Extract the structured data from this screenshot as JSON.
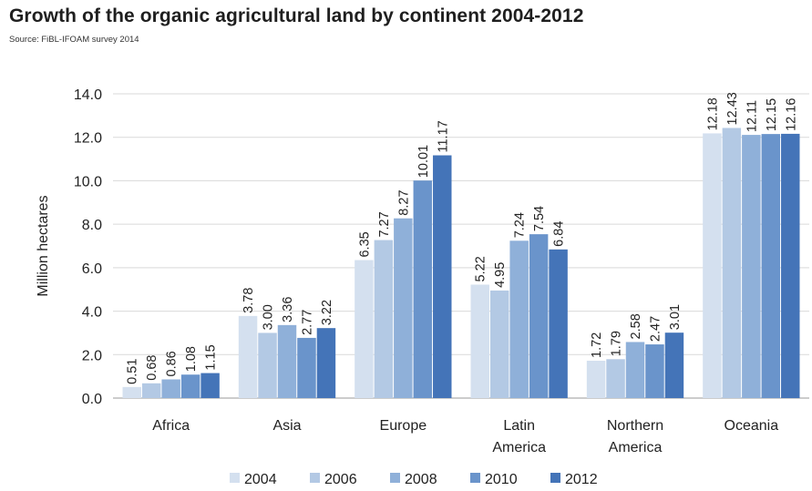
{
  "header": {
    "title": "Growth of the organic agricultural land by continent 2004-2012",
    "subtitle": "Source: FiBL-IFOAM survey 2014"
  },
  "chart_data": {
    "type": "bar",
    "title": "Growth of the organic agricultural land by continent 2004-2012",
    "subtitle": "Source: FiBL-IFOAM survey 2014",
    "xlabel": "",
    "ylabel": "Million hectares",
    "ylim": [
      0,
      14
    ],
    "yticks": [
      "0.0",
      "2.0",
      "4.0",
      "6.0",
      "8.0",
      "10.0",
      "12.0",
      "14.0"
    ],
    "grid": true,
    "legend_position": "bottom",
    "categories": [
      [
        "Africa"
      ],
      [
        "Asia"
      ],
      [
        "Europe"
      ],
      [
        "Latin",
        "America"
      ],
      [
        "Northern",
        "America"
      ],
      [
        "Oceania"
      ]
    ],
    "series": [
      {
        "name": "2004",
        "color": "#d4e0ef",
        "values": [
          0.51,
          3.78,
          6.35,
          5.22,
          1.72,
          12.18
        ],
        "labels": [
          "0.51",
          "3.78",
          "6.35",
          "5.22",
          "1.72",
          "12.18"
        ]
      },
      {
        "name": "2006",
        "color": "#b3c9e4",
        "values": [
          0.68,
          3.0,
          7.27,
          4.95,
          1.79,
          12.43
        ],
        "labels": [
          "0.68",
          "3.00",
          "7.27",
          "4.95",
          "1.79",
          "12.43"
        ]
      },
      {
        "name": "2008",
        "color": "#8fb0d9",
        "values": [
          0.86,
          3.36,
          8.27,
          7.24,
          2.58,
          12.11
        ],
        "labels": [
          "0.86",
          "3.36",
          "8.27",
          "7.24",
          "2.58",
          "12.11"
        ]
      },
      {
        "name": "2010",
        "color": "#6a94cb",
        "values": [
          1.08,
          2.77,
          10.01,
          7.54,
          2.47,
          12.15
        ],
        "labels": [
          "1.08",
          "2.77",
          "10.01",
          "7.54",
          "2.47",
          "12.15"
        ]
      },
      {
        "name": "2012",
        "color": "#4474b8",
        "values": [
          1.15,
          3.22,
          11.17,
          6.84,
          3.01,
          12.16
        ],
        "labels": [
          "1.15",
          "3.22",
          "11.17",
          "6.84",
          "3.01",
          "12.16"
        ]
      }
    ]
  }
}
